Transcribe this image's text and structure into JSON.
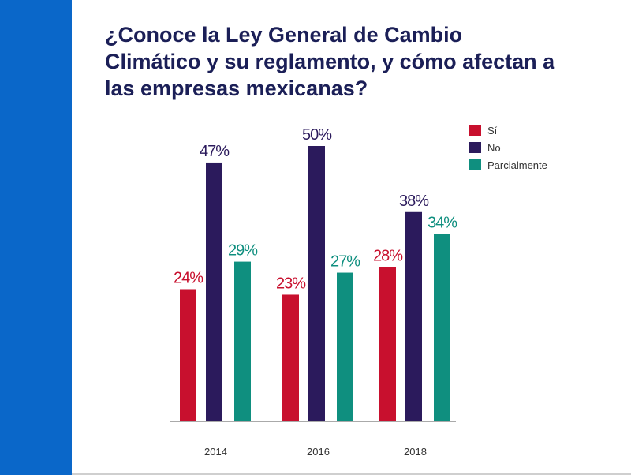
{
  "slide": {
    "title_lines": [
      "¿Conoce la Ley General de Cambio",
      "Climático y su reglamento, y cómo afectan a",
      "las empresas mexicanas?"
    ]
  },
  "colors": {
    "accent_bar": "#0a67c9",
    "title": "#1b1f57",
    "axis": "#555555"
  },
  "chart_data": {
    "type": "bar",
    "categories": [
      "2014",
      "2016",
      "2018"
    ],
    "series": [
      {
        "name": "Sí",
        "color": "#c8102e",
        "values": [
          24,
          23,
          28
        ],
        "labels": [
          "24%",
          "23%",
          "28%"
        ]
      },
      {
        "name": "No",
        "color": "#2b1a5c",
        "values": [
          47,
          50,
          38
        ],
        "labels": [
          "47%",
          "50%",
          "38%"
        ]
      },
      {
        "name": "Parcialmente",
        "color": "#0f8f7f",
        "values": [
          29,
          27,
          34
        ],
        "labels": [
          "29%",
          "27%",
          "34%"
        ]
      }
    ],
    "ylim": [
      0,
      50
    ],
    "legend_position": "top-right",
    "grid": false,
    "title": "",
    "xlabel": "",
    "ylabel": ""
  }
}
